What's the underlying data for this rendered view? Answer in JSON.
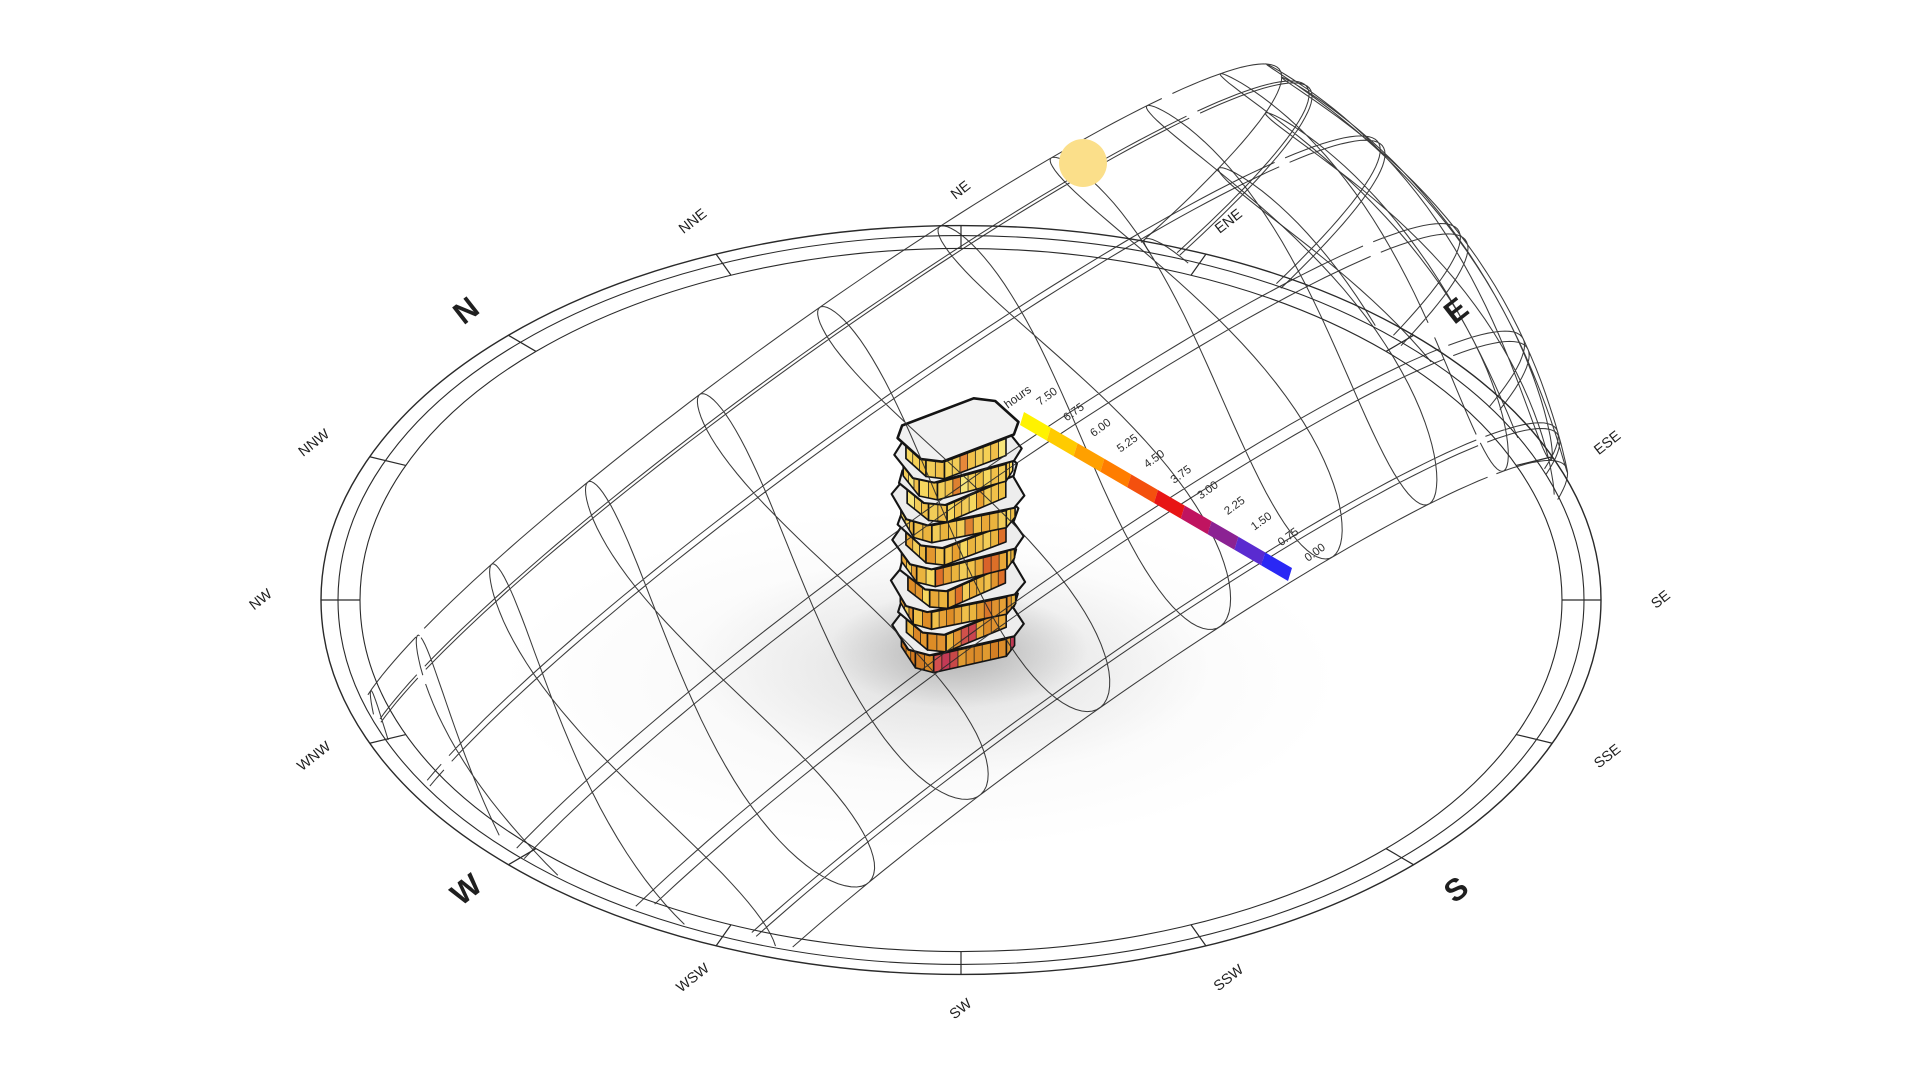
{
  "scene": {
    "background": "#ffffff",
    "line_color": "#2a2a2a"
  },
  "compass": {
    "ring_color": "#2a2a2a",
    "label_color": "#1f1f1f",
    "points": [
      {
        "label": "N",
        "azimuth": 0,
        "major": true
      },
      {
        "label": "NNE",
        "azimuth": 22.5,
        "major": false
      },
      {
        "label": "NE",
        "azimuth": 45,
        "major": false
      },
      {
        "label": "ENE",
        "azimuth": 67.5,
        "major": false
      },
      {
        "label": "E",
        "azimuth": 90,
        "major": true
      },
      {
        "label": "ESE",
        "azimuth": 112.5,
        "major": false
      },
      {
        "label": "SE",
        "azimuth": 135,
        "major": false
      },
      {
        "label": "SSE",
        "azimuth": 157.5,
        "major": false
      },
      {
        "label": "S",
        "azimuth": 180,
        "major": true
      },
      {
        "label": "SSW",
        "azimuth": 202.5,
        "major": false
      },
      {
        "label": "SW",
        "azimuth": 225,
        "major": false
      },
      {
        "label": "WSW",
        "azimuth": 247.5,
        "major": false
      },
      {
        "label": "W",
        "azimuth": 270,
        "major": true
      },
      {
        "label": "WNW",
        "azimuth": 292.5,
        "major": false
      },
      {
        "label": "NW",
        "azimuth": 315,
        "major": false
      },
      {
        "label": "NNW",
        "azimuth": 337.5,
        "major": false
      }
    ]
  },
  "legend": {
    "title": "hours",
    "values": [
      "7.50",
      "6.75",
      "6.00",
      "5.25",
      "4.50",
      "3.75",
      "3.00",
      "2.25",
      "1.50",
      "0.75",
      "0.00"
    ],
    "segment_colors": [
      "#fff200",
      "#ffcb00",
      "#ffa000",
      "#ff7d00",
      "#f4500e",
      "#e81515",
      "#c01460",
      "#8b2293",
      "#5a2bd0",
      "#2a28f5"
    ],
    "text_color": "#2e2e2e"
  },
  "sun": {
    "color": "#fbdf8a"
  },
  "building": {
    "roof_color": "#f1f1f1",
    "plate_color": "#ededed",
    "outline_color": "#141414",
    "floor_stripes": [
      [
        "#d1791f",
        "#dd8f2b",
        "#c9731f",
        "#d98a28",
        "#cf7b22",
        "#db8c2a",
        "#d37f24",
        "#e09a30",
        "#d98a28",
        "#db8c2a",
        "#e09a30",
        "#c84848",
        "#c43a55",
        "#d35050",
        "#bf3a55",
        "#dd9736"
      ],
      [
        "#d98526",
        "#f0c652",
        "#e2962e",
        "#d98526",
        "#eab43e",
        "#e09230",
        "#dd8c26",
        "#e8a838",
        "#e09230",
        "#db8c2a",
        "#e8a838",
        "#c9454f",
        "#d0514b",
        "#e09230",
        "#eab43e",
        "#e8a838"
      ],
      [
        "#e09230",
        "#f2cc58",
        "#e6a136",
        "#dd8c26",
        "#f0c04a",
        "#e6a136",
        "#e09230",
        "#d9772b",
        "#e2962e",
        "#eab43e",
        "#f0c04a",
        "#e6a136",
        "#dd8c26",
        "#e6a136",
        "#f0c04a",
        "#eab43e"
      ],
      [
        "#e2962e",
        "#eab43e",
        "#f6d75f",
        "#e2962e",
        "#dd8c26",
        "#eab43e",
        "#e8a838",
        "#dd6f28",
        "#e2962e",
        "#f0c04a",
        "#eab43e",
        "#e8a838",
        "#f2cc58",
        "#dd6f28",
        "#e8a838",
        "#eab43e"
      ],
      [
        "#e6a136",
        "#f2cc58",
        "#e8a838",
        "#f6d75f",
        "#eab43e",
        "#e8a838",
        "#dd6f28",
        "#d9622a",
        "#e8a838",
        "#f0c04a",
        "#f2cc58",
        "#eab43e",
        "#e6a136",
        "#dd6f28",
        "#eab43e",
        "#f0c04a"
      ],
      [
        "#e8a838",
        "#f6d75f",
        "#eab43e",
        "#f2cc58",
        "#e8a838",
        "#f0c04a",
        "#e2962e",
        "#dd6f28",
        "#eab43e",
        "#f2cc58",
        "#f0c04a",
        "#eab43e",
        "#f6d75f",
        "#e8a030",
        "#f0c04a",
        "#f2cc58"
      ],
      [
        "#eab43e",
        "#f2cc58",
        "#f6d75f",
        "#eab43e",
        "#f0c04a",
        "#f2cc58",
        "#eab43e",
        "#e8a838",
        "#f0c04a",
        "#dd8030",
        "#f2cc58",
        "#f0c04a",
        "#eab43e",
        "#f2cc58",
        "#f0c04a",
        "#f6d75f"
      ],
      [
        "#efc145",
        "#f6d75f",
        "#f0c04a",
        "#f2cc58",
        "#f6e47a",
        "#f0c04a",
        "#f2cc58",
        "#efc145",
        "#f0c04a",
        "#f2cc58",
        "#e8a030",
        "#f6d75f",
        "#f2cc58",
        "#f0c04a",
        "#f6d75f",
        "#f2cc58"
      ],
      [
        "#f0c04a",
        "#f6e47a",
        "#f2cc58",
        "#efc145",
        "#f6d75f",
        "#f2cc58",
        "#f0c04a",
        "#f6d75f",
        "#efc145",
        "#f2cc58",
        "#f6e47a",
        "#dd8030",
        "#f0c04a",
        "#f2cc58",
        "#f6d75f",
        "#f0c04a"
      ],
      [
        "#4a72b8",
        "#f0eca6",
        "#efc145",
        "#f4cf55",
        "#f6d75f",
        "#f0c04a",
        "#f2cc58",
        "#f6e47a",
        "#f0c04a",
        "#f4cf55",
        "#f2cc58",
        "#f0c04a",
        "#e8883a",
        "#f2cc58",
        "#f4cf55",
        "#f0c04a"
      ]
    ]
  }
}
